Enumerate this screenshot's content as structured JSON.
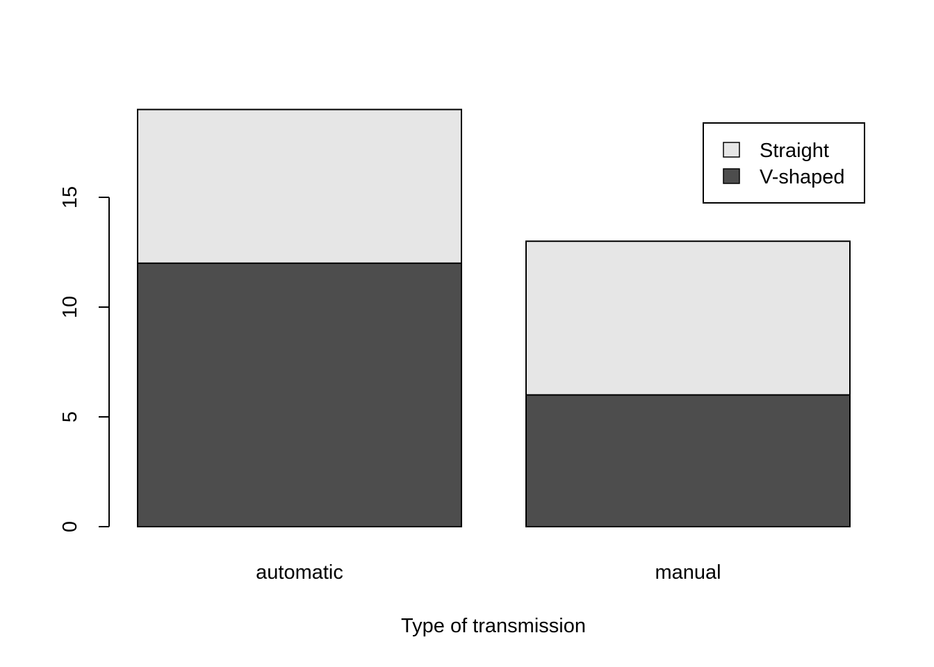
{
  "chart_data": {
    "type": "bar",
    "stacked": true,
    "title": "",
    "xlabel": "Type of transmission",
    "ylabel": "",
    "categories": [
      "automatic",
      "manual"
    ],
    "series": [
      {
        "name": "V-shaped",
        "values": [
          12,
          6
        ],
        "color": "#4d4d4d"
      },
      {
        "name": "Straight",
        "values": [
          7,
          7
        ],
        "color": "#e6e6e6"
      }
    ],
    "ylim": [
      0,
      19
    ],
    "yticks": [
      0,
      5,
      10,
      15
    ],
    "ytick_labels": [
      "0",
      "5",
      "10",
      "15"
    ],
    "grid": false,
    "legend": {
      "position": "top-right",
      "entries": [
        {
          "label": "Straight",
          "color": "#e6e6e6"
        },
        {
          "label": "V-shaped",
          "color": "#4d4d4d"
        }
      ]
    }
  }
}
